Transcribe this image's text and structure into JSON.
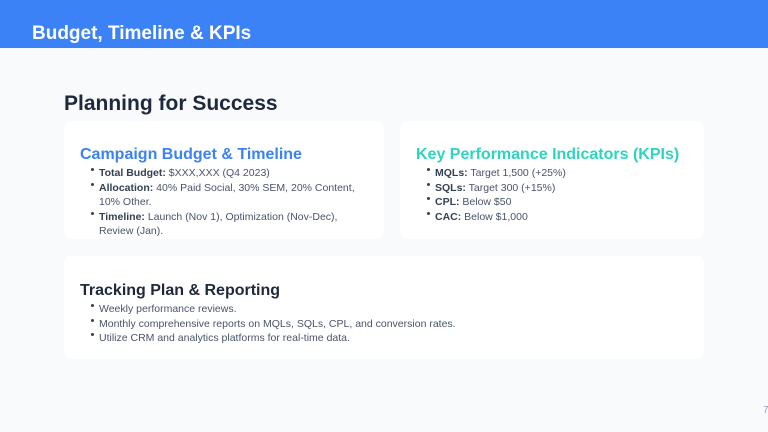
{
  "header": {
    "title": "Budget, Timeline & KPIs"
  },
  "main": {
    "title": "Planning for Success"
  },
  "cards": {
    "budget": {
      "title": "Campaign Budget & Timeline",
      "color": "#3b82f6",
      "items": [
        {
          "label": "Total Budget:",
          "text": " $XXX,XXX (Q4 2023)"
        },
        {
          "label": "Allocation:",
          "text": " 40% Paid Social, 30% SEM, 20% Content, 10% Other."
        },
        {
          "label": "Timeline:",
          "text": " Launch (Nov 1), Optimization (Nov-Dec), Review (Jan)."
        }
      ]
    },
    "kpis": {
      "title": "Key Performance Indicators (KPIs)",
      "color": "#2dd4bf",
      "items": [
        {
          "label": "MQLs:",
          "text": " Target 1,500 (+25%)"
        },
        {
          "label": "SQLs:",
          "text": " Target 300 (+15%)"
        },
        {
          "label": "CPL:",
          "text": " Below $50"
        },
        {
          "label": "CAC:",
          "text": " Below $1,000"
        }
      ]
    },
    "tracking": {
      "title": "Tracking Plan & Reporting",
      "items": [
        "Weekly performance reviews.",
        "Monthly comprehensive reports on MQLs, SQLs, CPL, and conversion rates.",
        "Utilize CRM and analytics platforms for real-time data."
      ]
    }
  },
  "page_number": "7"
}
